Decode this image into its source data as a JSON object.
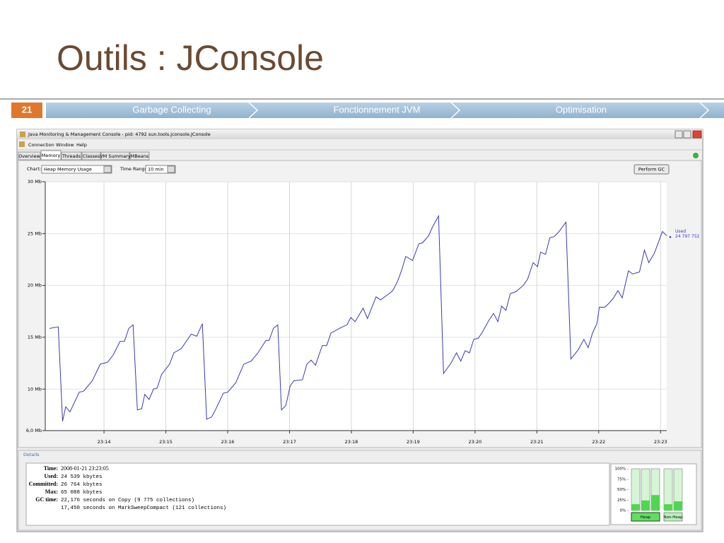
{
  "slide": {
    "title": "Outils : JConsole",
    "number": "21",
    "nav": [
      "Garbage Collecting",
      "Fonctionnement JVM",
      "Optimisation"
    ]
  },
  "window": {
    "title": "Java Monitoring & Management Console - pid: 4792 sun.tools.jconsole.JConsole",
    "menu": [
      "Connection",
      "Window",
      "Help"
    ],
    "tabs": [
      "Overview",
      "Memory",
      "Threads",
      "Classes",
      "VM Summary",
      "MBeans"
    ],
    "chart_label": "Chart:",
    "chart_select": "Heap Memory Usage",
    "range_label": "Time Range:",
    "range_select": "10 min",
    "button": "Perform GC"
  },
  "chart_data": {
    "type": "line",
    "xlim": [
      13.05,
      23.1
    ],
    "xticks": [
      {
        "value": 14,
        "label": "23:14"
      },
      {
        "value": 15,
        "label": "23:15"
      },
      {
        "value": 16,
        "label": "23:16"
      },
      {
        "value": 17,
        "label": "23:17"
      },
      {
        "value": 18,
        "label": "23:18"
      },
      {
        "value": 19,
        "label": "23:19"
      },
      {
        "value": 20,
        "label": "23:20"
      },
      {
        "value": 21,
        "label": "23:21"
      },
      {
        "value": 22,
        "label": "23:22"
      },
      {
        "value": 23,
        "label": "23:23"
      }
    ],
    "ylim": [
      6,
      30
    ],
    "yticks": [
      {
        "value": 30,
        "label": "30 Mb"
      },
      {
        "value": 25,
        "label": "25 Mb"
      },
      {
        "value": 20,
        "label": "20 Mb"
      },
      {
        "value": 15,
        "label": "15 Mb"
      },
      {
        "value": 10,
        "label": "10 Mb"
      },
      {
        "value": 6,
        "label": "6,0 Mb"
      }
    ],
    "grid": true,
    "x": [
      13.12,
      13.26,
      13.33,
      13.38,
      13.45,
      13.6,
      13.67,
      13.81,
      13.94,
      14.06,
      14.15,
      14.26,
      14.33,
      14.4,
      14.47,
      14.54,
      14.61,
      14.66,
      14.73,
      14.8,
      14.86,
      14.93,
      15.06,
      15.13,
      15.25,
      15.41,
      15.5,
      15.59,
      15.66,
      15.74,
      15.81,
      15.93,
      16.0,
      16.13,
      16.26,
      16.38,
      16.49,
      16.62,
      16.67,
      16.74,
      16.81,
      16.87,
      16.94,
      17.01,
      17.07,
      17.21,
      17.28,
      17.35,
      17.42,
      17.53,
      17.6,
      17.67,
      17.82,
      17.93,
      17.99,
      18.06,
      18.13,
      18.19,
      18.26,
      18.4,
      18.47,
      18.61,
      18.67,
      18.74,
      18.81,
      18.88,
      18.99,
      19.09,
      19.15,
      19.25,
      19.31,
      19.41,
      19.49,
      19.61,
      19.7,
      19.77,
      19.84,
      19.91,
      19.98,
      20.05,
      20.11,
      20.23,
      20.3,
      20.37,
      20.43,
      20.5,
      20.57,
      20.66,
      20.78,
      20.85,
      20.94,
      21.01,
      21.06,
      21.14,
      21.21,
      21.28,
      21.36,
      21.47,
      21.55,
      21.67,
      21.76,
      21.83,
      21.9,
      21.97,
      22.01,
      22.1,
      22.17,
      22.24,
      22.31,
      22.38,
      22.48,
      22.55,
      22.66,
      22.74,
      22.81,
      22.9,
      23.03,
      23.1
    ],
    "series": [
      {
        "name": "Used",
        "color": "#3a3ab0",
        "current_value": "24 797 752",
        "values": [
          15.85,
          16.0,
          6.9,
          8.3,
          7.8,
          9.7,
          9.8,
          10.8,
          12.4,
          12.6,
          13.3,
          14.6,
          14.6,
          15.85,
          16.2,
          8.0,
          8.1,
          9.5,
          9.0,
          10.0,
          10.1,
          11.4,
          12.4,
          13.5,
          13.9,
          15.3,
          15.1,
          16.3,
          7.1,
          7.3,
          8.1,
          9.6,
          9.7,
          10.6,
          12.4,
          12.7,
          13.5,
          14.7,
          14.7,
          15.85,
          16.2,
          8.0,
          8.4,
          10.3,
          10.8,
          10.9,
          12.4,
          12.8,
          12.3,
          14.2,
          14.2,
          15.4,
          15.9,
          16.2,
          16.9,
          16.5,
          17.2,
          17.8,
          16.8,
          18.9,
          18.6,
          19.2,
          19.5,
          20.3,
          21.4,
          22.8,
          22.4,
          24.0,
          24.1,
          24.8,
          25.6,
          26.7,
          11.5,
          12.5,
          13.5,
          12.7,
          13.7,
          13.5,
          14.8,
          14.9,
          15.4,
          16.7,
          17.3,
          16.5,
          18.0,
          17.6,
          19.2,
          19.4,
          20.0,
          20.6,
          22.2,
          21.8,
          23.2,
          23.0,
          24.6,
          24.7,
          25.2,
          26.1,
          12.9,
          13.8,
          14.8,
          14.0,
          15.4,
          16.3,
          17.9,
          17.9,
          18.3,
          18.8,
          19.5,
          18.8,
          21.4,
          21.1,
          21.3,
          23.4,
          22.2,
          23.1,
          25.2,
          24.8
        ]
      }
    ]
  },
  "details": {
    "title": "Details",
    "rows": [
      {
        "label": "Time:",
        "value": "2008-01-21 23:23:05"
      },
      {
        "label": "Used:",
        "value": "24 539 kbytes"
      },
      {
        "label": "Committed:",
        "value": "26 764 kbytes"
      },
      {
        "label": "Max:",
        "value": "65 088 kbytes"
      },
      {
        "label": "GC time:",
        "value": "22,176 seconds on Copy (9 775 collections)"
      }
    ],
    "gc_extra": "17,450 seconds on MarkSweepCompact (121 collections)"
  },
  "gauges": {
    "ylim": [
      0,
      100
    ],
    "ticks": [
      {
        "value": 100,
        "label": "100% -"
      },
      {
        "value": 75,
        "label": "75% -"
      },
      {
        "value": 50,
        "label": "50% -"
      },
      {
        "value": 25,
        "label": "25% -"
      },
      {
        "value": 0,
        "label": "0% -"
      }
    ],
    "groups": [
      {
        "name": "Heap",
        "values": [
          15,
          24,
          37
        ]
      },
      {
        "name": "Non-Heap",
        "values": [
          15,
          22
        ]
      }
    ]
  }
}
